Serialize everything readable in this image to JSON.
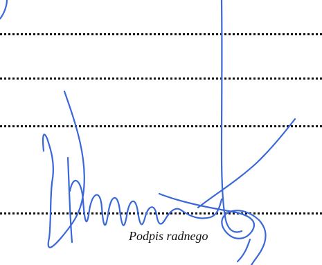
{
  "document": {
    "signature_caption": "Podpis radnego",
    "ink_color": "#3a68d8",
    "line_color": "#111111"
  }
}
